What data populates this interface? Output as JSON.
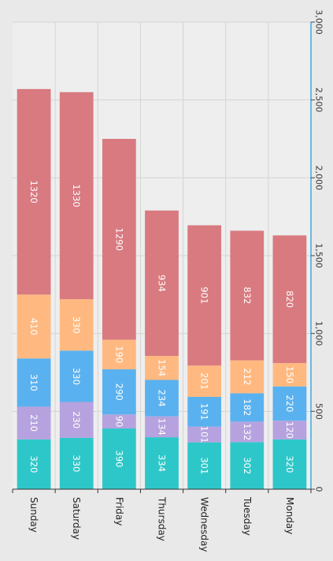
{
  "chart_data": {
    "type": "bar",
    "orientation": "horizontal-stacked",
    "title": "",
    "xlabel": "",
    "ylabel": "",
    "categories": [
      "Sunday",
      "Saturday",
      "Friday",
      "Thursday",
      "Wednesday",
      "Tuesday",
      "Monday"
    ],
    "series": [
      {
        "color": "#2ec7c9",
        "values": [
          320,
          330,
          390,
          334,
          301,
          302,
          320
        ]
      },
      {
        "color": "#b6a2de",
        "values": [
          210,
          230,
          90,
          134,
          101,
          132,
          120
        ]
      },
      {
        "color": "#5ab1ef",
        "values": [
          310,
          330,
          290,
          234,
          191,
          182,
          220
        ]
      },
      {
        "color": "#ffb980",
        "values": [
          410,
          330,
          190,
          154,
          201,
          212,
          150
        ]
      },
      {
        "color": "#d87a80",
        "values": [
          1320,
          1330,
          1290,
          934,
          901,
          832,
          820
        ]
      }
    ],
    "value_axis": {
      "range": [
        0,
        3000
      ],
      "ticks": [
        0,
        500,
        1000,
        1500,
        2000,
        2500,
        3000
      ],
      "tick_labels": [
        "0",
        "500",
        "1,000",
        "1,500",
        "2,000",
        "2,500",
        "3,000"
      ]
    },
    "grid": true,
    "legend": "none",
    "colors": {
      "axis": "#3fa7dc",
      "grid": "#d4d4d4",
      "background": "#e9e9e9"
    }
  }
}
